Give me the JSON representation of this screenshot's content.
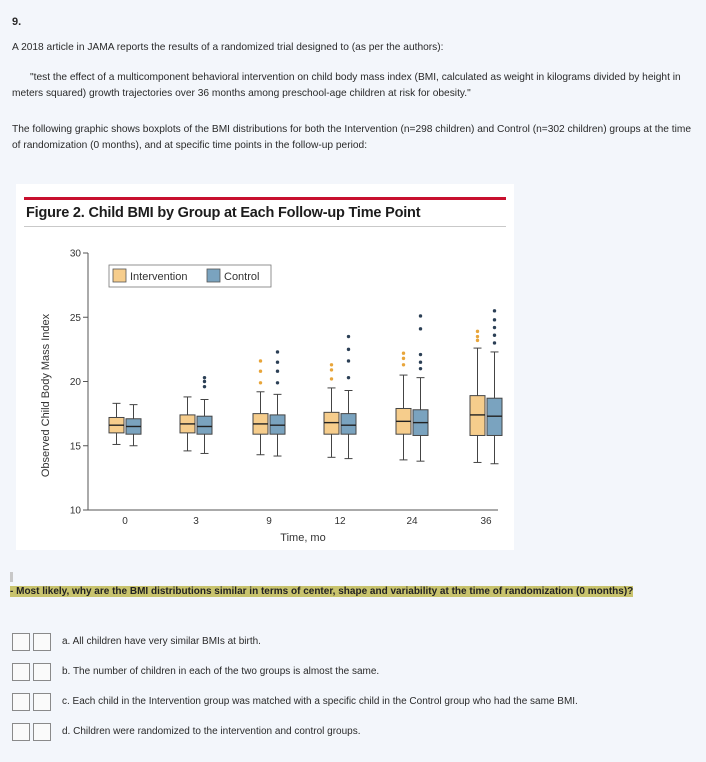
{
  "question": {
    "number": "9.",
    "intro": "A 2018 article in JAMA reports the results of a randomized trial designed to (as per the authors):",
    "quote": "\"test the effect of a multicomponent behavioral intervention on child body mass index (BMI, calculated as weight in kilograms divided by height in meters squared) growth trajectories over 36 months among preschool-age children at risk for obesity.\"",
    "graphic_text": "The following graphic shows boxplots of the BMI distributions for both the Intervention (n=298 children) and Control (n=302 children) groups at the time of randomization (0 months), and at specific time points in the follow-up period:",
    "prompt": "- Most likely, why are the BMI distributions similar in terms of center, shape and variability at the time of randomization (0 months)?",
    "options": [
      "a. All children have very similar BMIs at birth.",
      "b. The number of children in each of the two groups is almost the same.",
      "c. Each child in the Intervention group was matched with a specific child in the Control group who had the same BMI.",
      "d. Children were randomized to the intervention and control groups."
    ]
  },
  "colors": {
    "intervention": "#f6cd8c",
    "control": "#7aa3bf",
    "outlier_intervention": "#e8a53a",
    "outlier_control": "#2b3f55",
    "accent_rule": "#c8102e"
  },
  "chart_data": {
    "type": "boxplot",
    "title": "Figure 2. Child BMI by Group at Each Follow-up Time Point",
    "xlabel": "Time, mo",
    "ylabel": "Observed Child Body Mass Index",
    "categories": [
      "0",
      "3",
      "9",
      "12",
      "24",
      "36"
    ],
    "ylim": [
      10,
      30
    ],
    "yticks": [
      10,
      15,
      20,
      25,
      30
    ],
    "legend": [
      "Intervention",
      "Control"
    ],
    "legend_position": "top-left",
    "series": [
      {
        "name": "Intervention",
        "boxes": [
          {
            "min": 15.1,
            "q1": 16.0,
            "median": 16.6,
            "q3": 17.2,
            "max": 18.3,
            "outliers": []
          },
          {
            "min": 14.6,
            "q1": 16.0,
            "median": 16.7,
            "q3": 17.4,
            "max": 18.8,
            "outliers": []
          },
          {
            "min": 14.3,
            "q1": 15.9,
            "median": 16.7,
            "q3": 17.5,
            "max": 19.2,
            "outliers": [
              19.9,
              20.8,
              21.6
            ]
          },
          {
            "min": 14.1,
            "q1": 15.9,
            "median": 16.8,
            "q3": 17.6,
            "max": 19.5,
            "outliers": [
              20.2,
              20.9,
              21.3
            ]
          },
          {
            "min": 13.9,
            "q1": 15.9,
            "median": 16.9,
            "q3": 17.9,
            "max": 20.5,
            "outliers": [
              21.3,
              21.8,
              22.2
            ]
          },
          {
            "min": 13.7,
            "q1": 15.8,
            "median": 17.4,
            "q3": 18.9,
            "max": 22.6,
            "outliers": [
              23.2,
              23.5,
              23.9
            ]
          }
        ]
      },
      {
        "name": "Control",
        "boxes": [
          {
            "min": 15.0,
            "q1": 15.9,
            "median": 16.5,
            "q3": 17.1,
            "max": 18.2,
            "outliers": []
          },
          {
            "min": 14.4,
            "q1": 15.9,
            "median": 16.5,
            "q3": 17.3,
            "max": 18.6,
            "outliers": [
              19.6,
              20.0,
              20.3
            ]
          },
          {
            "min": 14.2,
            "q1": 15.9,
            "median": 16.6,
            "q3": 17.4,
            "max": 19.0,
            "outliers": [
              19.9,
              20.8,
              21.5,
              22.3
            ]
          },
          {
            "min": 14.0,
            "q1": 15.9,
            "median": 16.6,
            "q3": 17.5,
            "max": 19.3,
            "outliers": [
              20.3,
              21.6,
              22.5,
              23.5
            ]
          },
          {
            "min": 13.8,
            "q1": 15.8,
            "median": 16.8,
            "q3": 17.8,
            "max": 20.3,
            "outliers": [
              21.0,
              21.5,
              22.1,
              24.1,
              25.1
            ]
          },
          {
            "min": 13.6,
            "q1": 15.8,
            "median": 17.3,
            "q3": 18.7,
            "max": 22.3,
            "outliers": [
              23.0,
              23.6,
              24.2,
              24.8,
              25.5
            ]
          }
        ]
      }
    ]
  }
}
